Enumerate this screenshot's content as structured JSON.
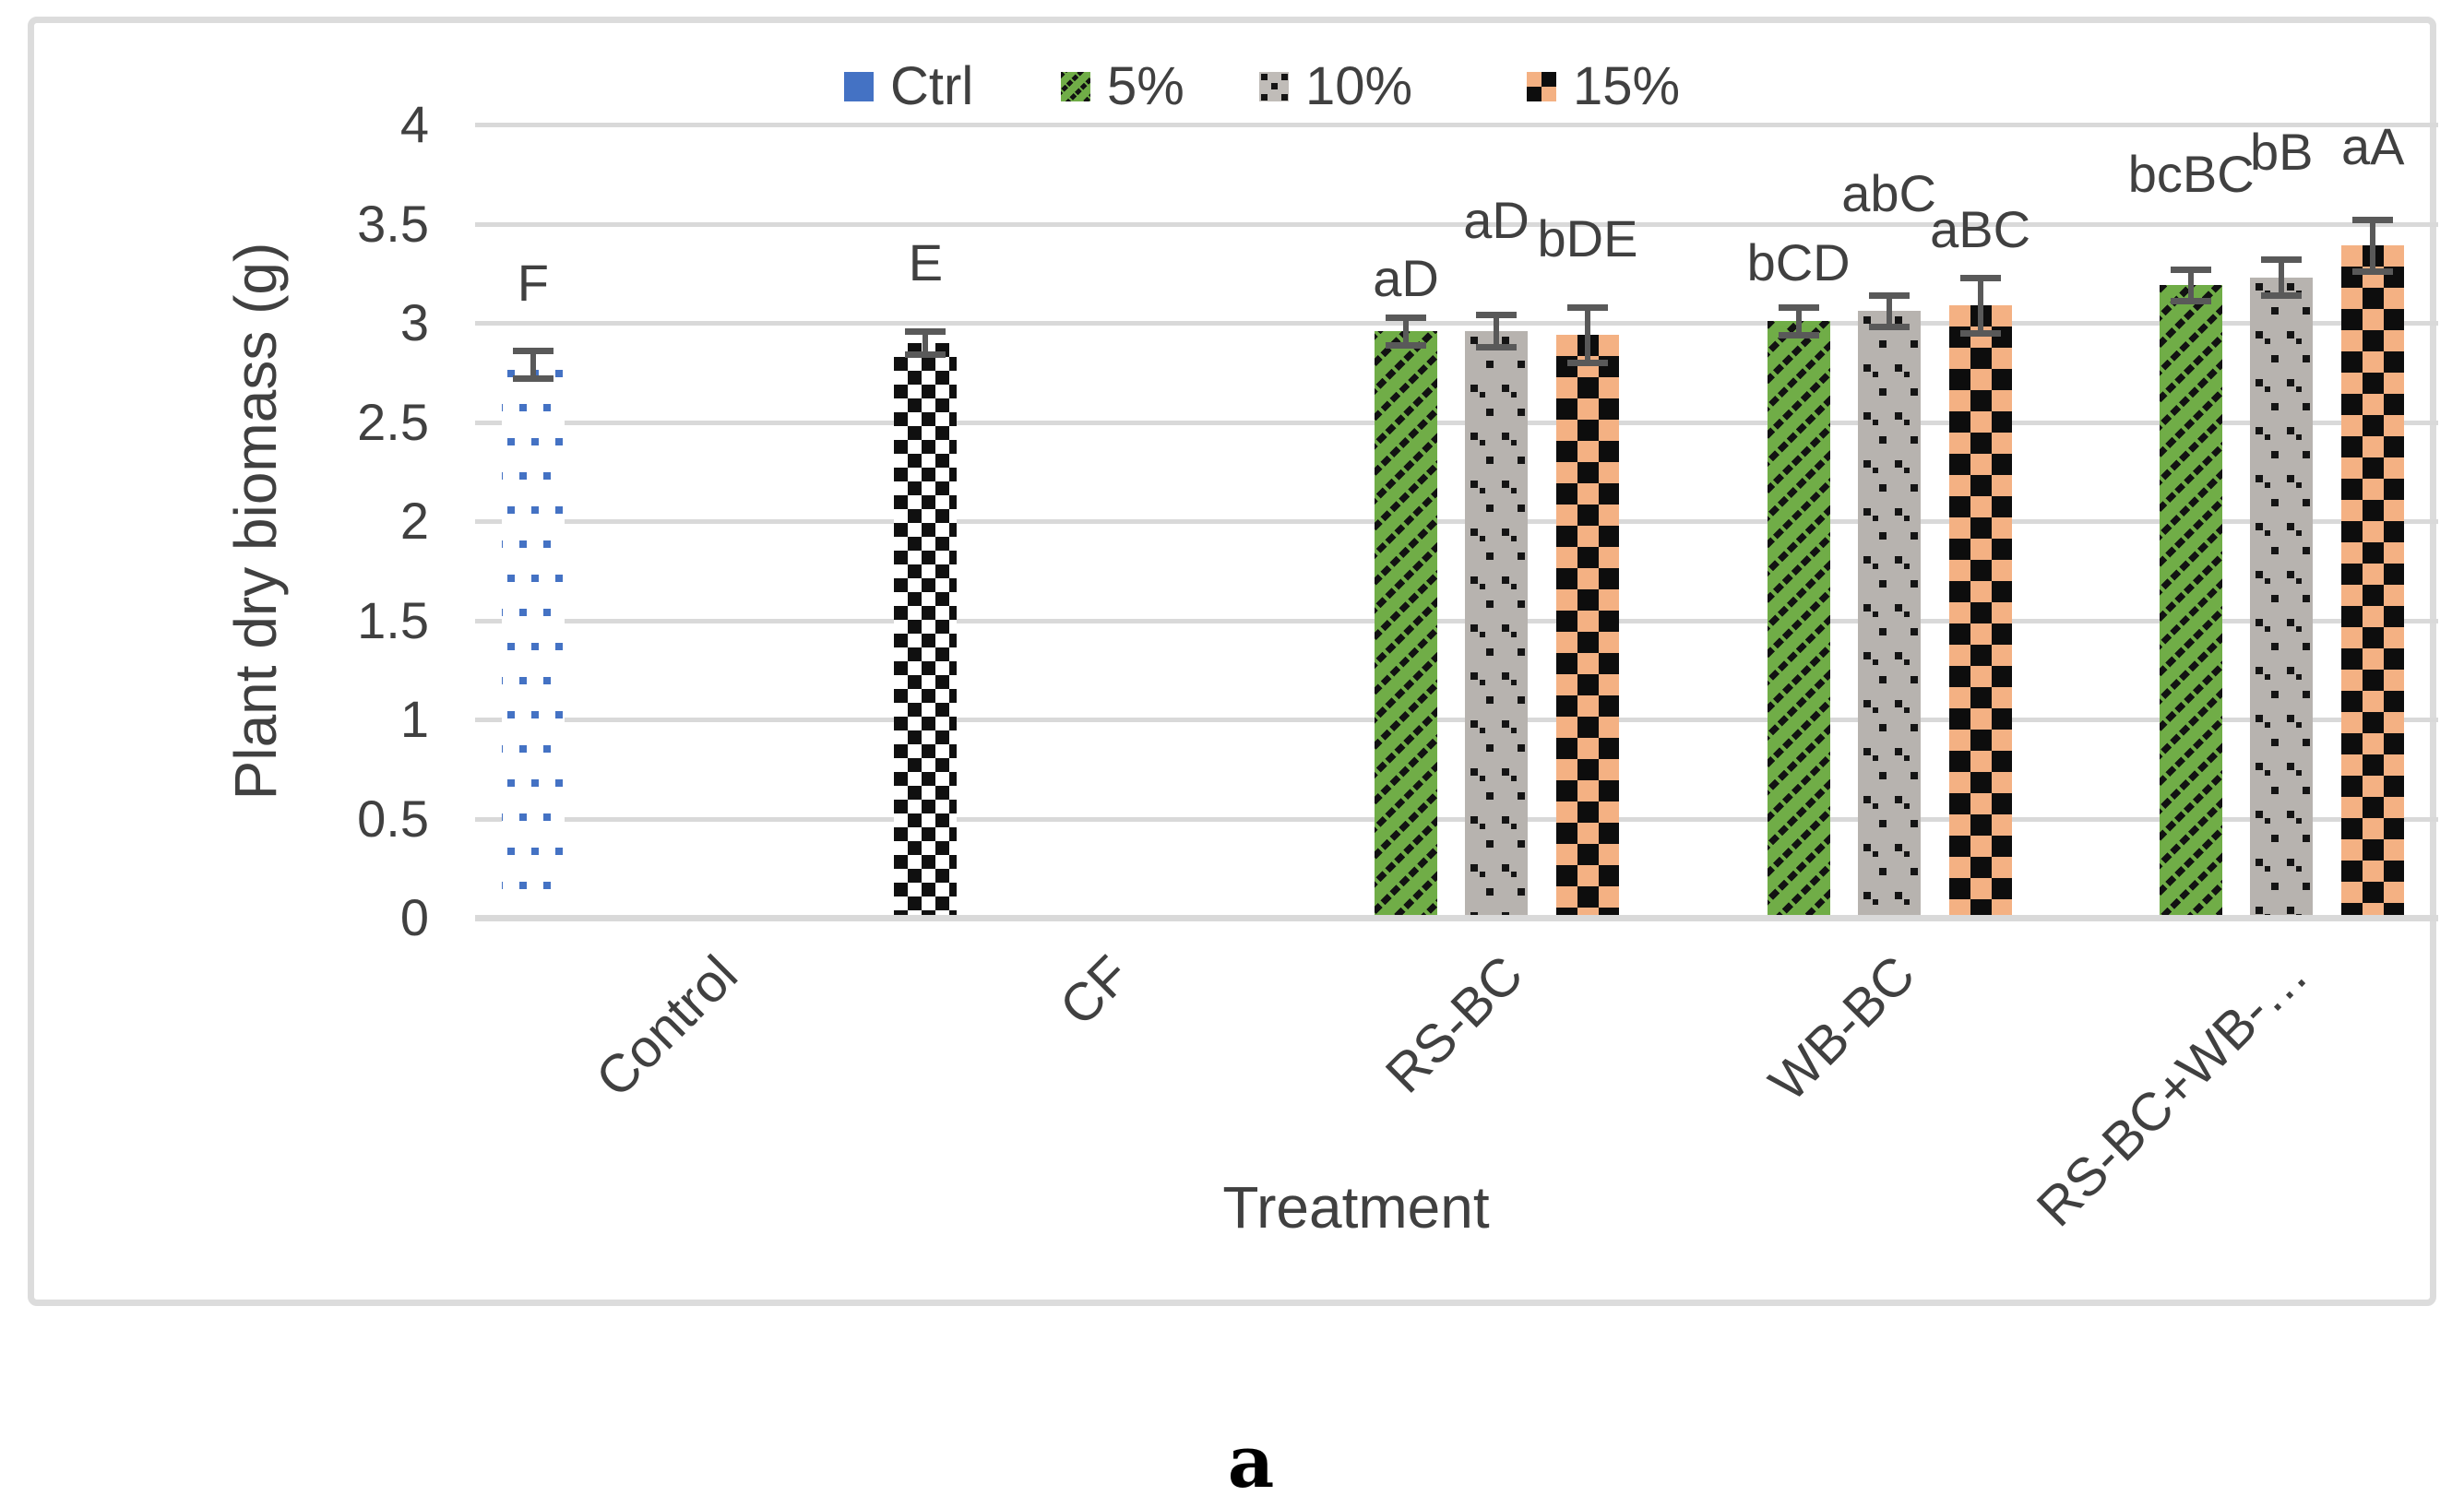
{
  "caption": "a",
  "chart_data": {
    "type": "bar",
    "title": "",
    "xlabel": "Treatment",
    "ylabel": "Plant dry biomass (g)",
    "ylim": [
      0,
      4
    ],
    "yticks": [
      0,
      0.5,
      1,
      1.5,
      2,
      2.5,
      3,
      3.5,
      4
    ],
    "grid": true,
    "legend_position": "top",
    "categories": [
      "Control",
      "CF",
      "RS-BC",
      "WB-BC",
      "RS-BC+WB-…"
    ],
    "series": [
      {
        "name": "Ctrl",
        "legend_swatch": "solid-blue",
        "pattern": "ctrl-dots",
        "point_patterns": {
          "1": "checker-bw"
        },
        "values": [
          2.79,
          2.9,
          null,
          null,
          null
        ],
        "errors": [
          0.07,
          0.06,
          null,
          null,
          null
        ],
        "sig_labels": [
          "F",
          "E",
          null,
          null,
          null
        ]
      },
      {
        "name": "5%",
        "legend_swatch": "green-diag",
        "pattern": "green-diag",
        "values": [
          null,
          null,
          2.96,
          3.01,
          3.19
        ],
        "errors": [
          null,
          null,
          0.07,
          0.07,
          0.08
        ],
        "sig_labels": [
          null,
          null,
          "aD",
          "bCD",
          "bcBC"
        ]
      },
      {
        "name": "10%",
        "legend_swatch": "gray-divot",
        "pattern": "gray-divot",
        "values": [
          null,
          null,
          2.96,
          3.06,
          3.23
        ],
        "errors": [
          null,
          null,
          0.08,
          0.08,
          0.09
        ],
        "sig_labels": [
          null,
          null,
          "aD",
          "abC",
          "bB"
        ]
      },
      {
        "name": "15%",
        "legend_swatch": "orange-checker",
        "pattern": "orange-checker",
        "values": [
          null,
          null,
          2.94,
          3.09,
          3.39
        ],
        "errors": [
          null,
          null,
          0.14,
          0.14,
          0.13
        ],
        "sig_labels": [
          null,
          null,
          "bDE",
          "aBC",
          "aA"
        ]
      }
    ],
    "colors": {
      "ctrl_blue": "#4472C4",
      "green": "#70AD47",
      "gray": "#B7B3AF",
      "orange": "#F4B183",
      "pattern_black": "#111111",
      "axis_text": "#404040",
      "gridline": "#D9D9D9",
      "error_bar": "#595959",
      "chart_border": "#DCDCDC"
    }
  }
}
